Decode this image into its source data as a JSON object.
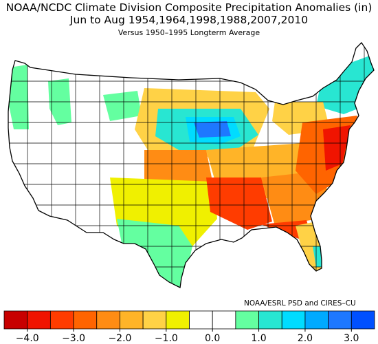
{
  "title_line1": "NOAA/NCDC Climate Division Composite Precipitation Anomalies (in)",
  "title_line2": "Jun to Aug   1954,1964,1998,1988,2007,2010",
  "title_line3": "Versus 1950–1995 Longterm Average",
  "credit": "NOAA/ESRL PSD and CIRES–CU",
  "legend": {
    "colors": [
      "#c80000",
      "#f01400",
      "#ff3c00",
      "#ff6400",
      "#ff8c14",
      "#ffb428",
      "#ffd246",
      "#f0f000",
      "#ffffff",
      "#ffffff",
      "#64ffa0",
      "#28e6d2",
      "#00dcff",
      "#00aaff",
      "#1e78ff",
      "#0050ff"
    ],
    "tick_labels": [
      "−4.0",
      "−3.0",
      "−2.0",
      "−1.0",
      "0.0",
      "1.0",
      "2.0",
      "3.0",
      "4.0"
    ]
  },
  "map_regions": [
    {
      "name": "pacific-nw-coast",
      "cls": "green"
    },
    {
      "name": "northern-rockies",
      "cls": "green"
    },
    {
      "name": "upper-midwest",
      "cls": "blue"
    },
    {
      "name": "new-england",
      "cls": "teal"
    },
    {
      "name": "central-plains",
      "cls": "orange"
    },
    {
      "name": "southern-plains",
      "cls": "yellow"
    },
    {
      "name": "gulf-coast-texas",
      "cls": "green"
    },
    {
      "name": "deep-south",
      "cls": "red"
    },
    {
      "name": "southeast-coast",
      "cls": "orange"
    },
    {
      "name": "mid-atlantic",
      "cls": "red"
    },
    {
      "name": "florida",
      "cls": "yellow"
    }
  ]
}
